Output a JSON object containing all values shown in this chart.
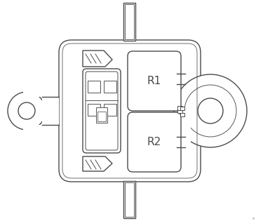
{
  "bg_color": "#ffffff",
  "line_color": "#4a4a4a",
  "line_width": 1.0,
  "relay_labels": [
    "R1",
    "R2"
  ],
  "relay_font_size": 11,
  "figsize": [
    3.65,
    3.15
  ],
  "dpi": 100
}
